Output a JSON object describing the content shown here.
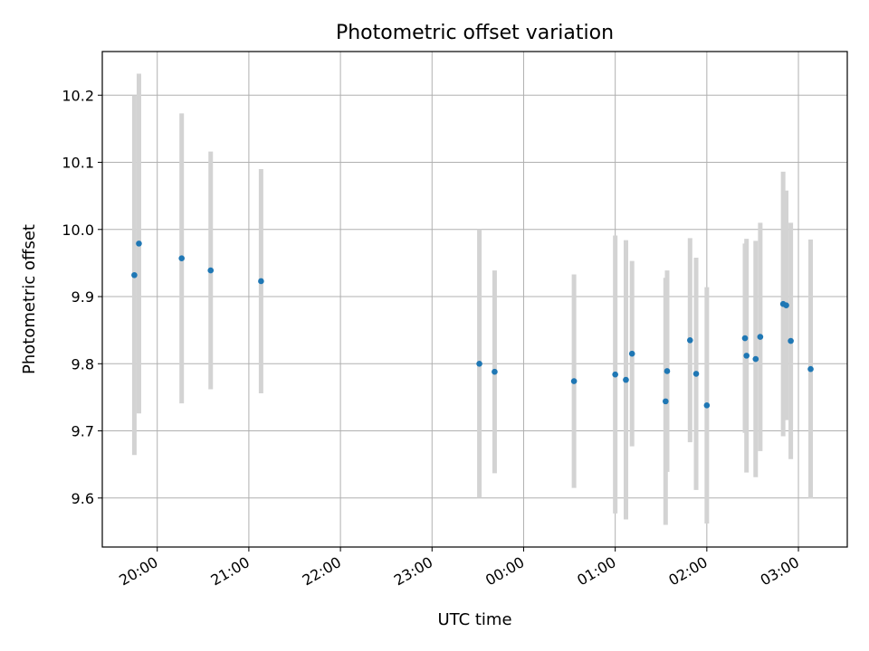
{
  "chart_data": {
    "type": "scatter",
    "title": "Photometric offset variation",
    "xlabel": "UTC time",
    "ylabel": "Photometric offset",
    "grid": true,
    "legend": "none",
    "x_axis_unit": "hours (UTC), ticks wrap past midnight",
    "xlim": [
      "19:24",
      "03:32"
    ],
    "ylim": [
      9.527,
      10.265
    ],
    "x_ticks": [
      "20:00",
      "21:00",
      "22:00",
      "23:00",
      "00:00",
      "01:00",
      "02:00",
      "03:00"
    ],
    "y_ticks": [
      "9.6",
      "9.7",
      "9.8",
      "9.9",
      "10.0",
      "10.1",
      "10.2"
    ],
    "colors": {
      "point": "#1f77b4",
      "errorbar": "#d3d3d3",
      "grid": "#b0b0b0",
      "axes": "#000000"
    },
    "series": [
      {
        "points": [
          {
            "x": "19:45",
            "y": 9.932,
            "err": 0.268
          },
          {
            "x": "19:48",
            "y": 9.979,
            "err": 0.253
          },
          {
            "x": "20:16",
            "y": 9.957,
            "err": 0.216
          },
          {
            "x": "20:35",
            "y": 9.939,
            "err": 0.177
          },
          {
            "x": "21:08",
            "y": 9.923,
            "err": 0.167
          },
          {
            "x": "23:31",
            "y": 9.8,
            "err": 0.2
          },
          {
            "x": "23:41",
            "y": 9.788,
            "err": 0.151
          },
          {
            "x": "00:33",
            "y": 9.774,
            "err": 0.159
          },
          {
            "x": "01:00",
            "y": 9.784,
            "err": 0.207
          },
          {
            "x": "01:07",
            "y": 9.776,
            "err": 0.208
          },
          {
            "x": "01:11",
            "y": 9.815,
            "err": 0.138
          },
          {
            "x": "01:33",
            "y": 9.744,
            "err": 0.184
          },
          {
            "x": "01:34",
            "y": 9.789,
            "err": 0.15
          },
          {
            "x": "01:49",
            "y": 9.835,
            "err": 0.152
          },
          {
            "x": "01:53",
            "y": 9.785,
            "err": 0.173
          },
          {
            "x": "02:00",
            "y": 9.738,
            "err": 0.176
          },
          {
            "x": "02:25",
            "y": 9.838,
            "err": 0.141
          },
          {
            "x": "02:26",
            "y": 9.812,
            "err": 0.174
          },
          {
            "x": "02:32",
            "y": 9.807,
            "err": 0.176
          },
          {
            "x": "02:35",
            "y": 9.84,
            "err": 0.17
          },
          {
            "x": "02:50",
            "y": 9.889,
            "err": 0.197
          },
          {
            "x": "02:52",
            "y": 9.887,
            "err": 0.171
          },
          {
            "x": "02:55",
            "y": 9.834,
            "err": 0.176
          },
          {
            "x": "03:08",
            "y": 9.792,
            "err": 0.193
          }
        ]
      }
    ]
  }
}
